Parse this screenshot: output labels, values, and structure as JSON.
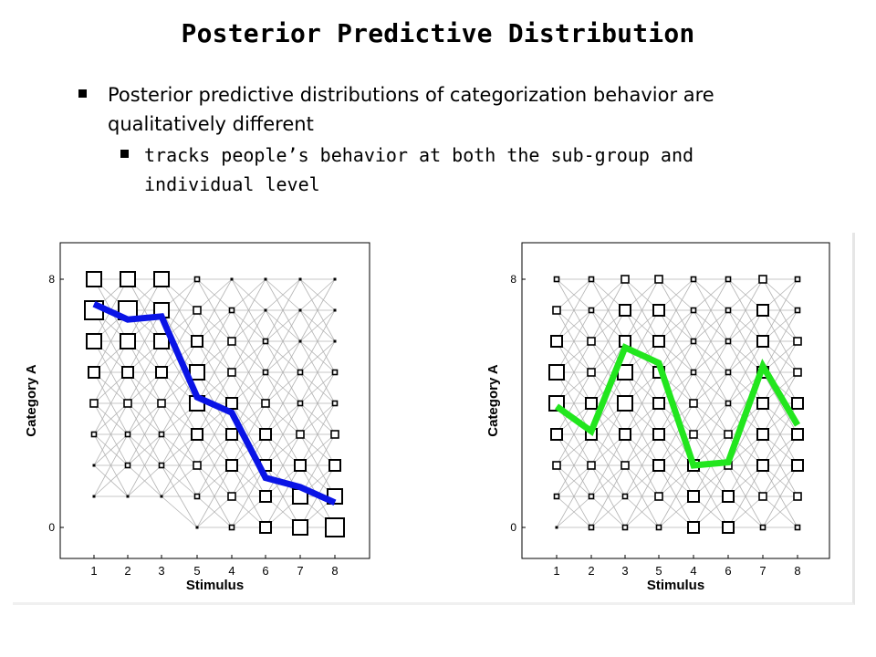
{
  "slide": {
    "title": "Posterior Predictive Distribution",
    "bullet1": "Posterior predictive distributions of categorization behavior are qualitatively different",
    "bullet2": "tracks people’s behavior at both the sub-group and individual level"
  },
  "colors": {
    "left_line": "#0a14e6",
    "right_line": "#22e61e",
    "box": "#000000",
    "grid_line": "#b4b4b4"
  },
  "chart_data": [
    {
      "type": "scatter",
      "title": "",
      "xlabel": "Stimulus",
      "ylabel": "Category A",
      "x_tick_labels": [
        "1",
        "2",
        "3",
        "5",
        "4",
        "6",
        "7",
        "8"
      ],
      "y_tick_labels": [
        "0",
        "8"
      ],
      "ylim": [
        0,
        8
      ],
      "grid": false,
      "box_sizes": [
        [
          0,
          1,
          1,
          2,
          3,
          4,
          5,
          6,
          5
        ],
        [
          0,
          1,
          2,
          2,
          3,
          4,
          5,
          6,
          5
        ],
        [
          0,
          1,
          2,
          2,
          3,
          4,
          5,
          5,
          5
        ],
        [
          1,
          2,
          3,
          4,
          5,
          5,
          4,
          3,
          2
        ],
        [
          2,
          3,
          4,
          4,
          4,
          3,
          3,
          2,
          1
        ],
        [
          4,
          4,
          4,
          4,
          3,
          2,
          2,
          1,
          1
        ],
        [
          5,
          5,
          4,
          3,
          2,
          2,
          1,
          1,
          1
        ],
        [
          6,
          5,
          4,
          3,
          2,
          2,
          1,
          1,
          1
        ]
      ],
      "series": [
        {
          "values": [
            7.2,
            6.7,
            6.8,
            4.2,
            3.7,
            1.6,
            1.3,
            0.8
          ]
        }
      ]
    },
    {
      "type": "scatter",
      "title": "",
      "xlabel": "Stimulus",
      "ylabel": "Category A",
      "x_tick_labels": [
        "1",
        "2",
        "3",
        "5",
        "4",
        "6",
        "7",
        "8"
      ],
      "y_tick_labels": [
        "0",
        "8"
      ],
      "ylim": [
        0,
        8
      ],
      "grid": false,
      "box_sizes": [
        [
          1,
          2,
          3,
          4,
          5,
          5,
          4,
          3,
          2
        ],
        [
          2,
          2,
          3,
          4,
          4,
          3,
          3,
          2,
          2
        ],
        [
          2,
          2,
          3,
          4,
          5,
          5,
          4,
          4,
          3
        ],
        [
          2,
          3,
          4,
          4,
          4,
          4,
          4,
          4,
          3
        ],
        [
          4,
          4,
          4,
          3,
          3,
          2,
          2,
          2,
          2
        ],
        [
          4,
          4,
          3,
          3,
          2,
          2,
          2,
          2,
          2
        ],
        [
          2,
          3,
          4,
          4,
          4,
          4,
          4,
          4,
          3
        ],
        [
          2,
          3,
          4,
          4,
          4,
          3,
          3,
          2,
          2
        ]
      ],
      "series": [
        {
          "values": [
            3.9,
            3.1,
            5.8,
            5.3,
            2.0,
            2.1,
            5.2,
            3.3
          ]
        }
      ]
    }
  ]
}
